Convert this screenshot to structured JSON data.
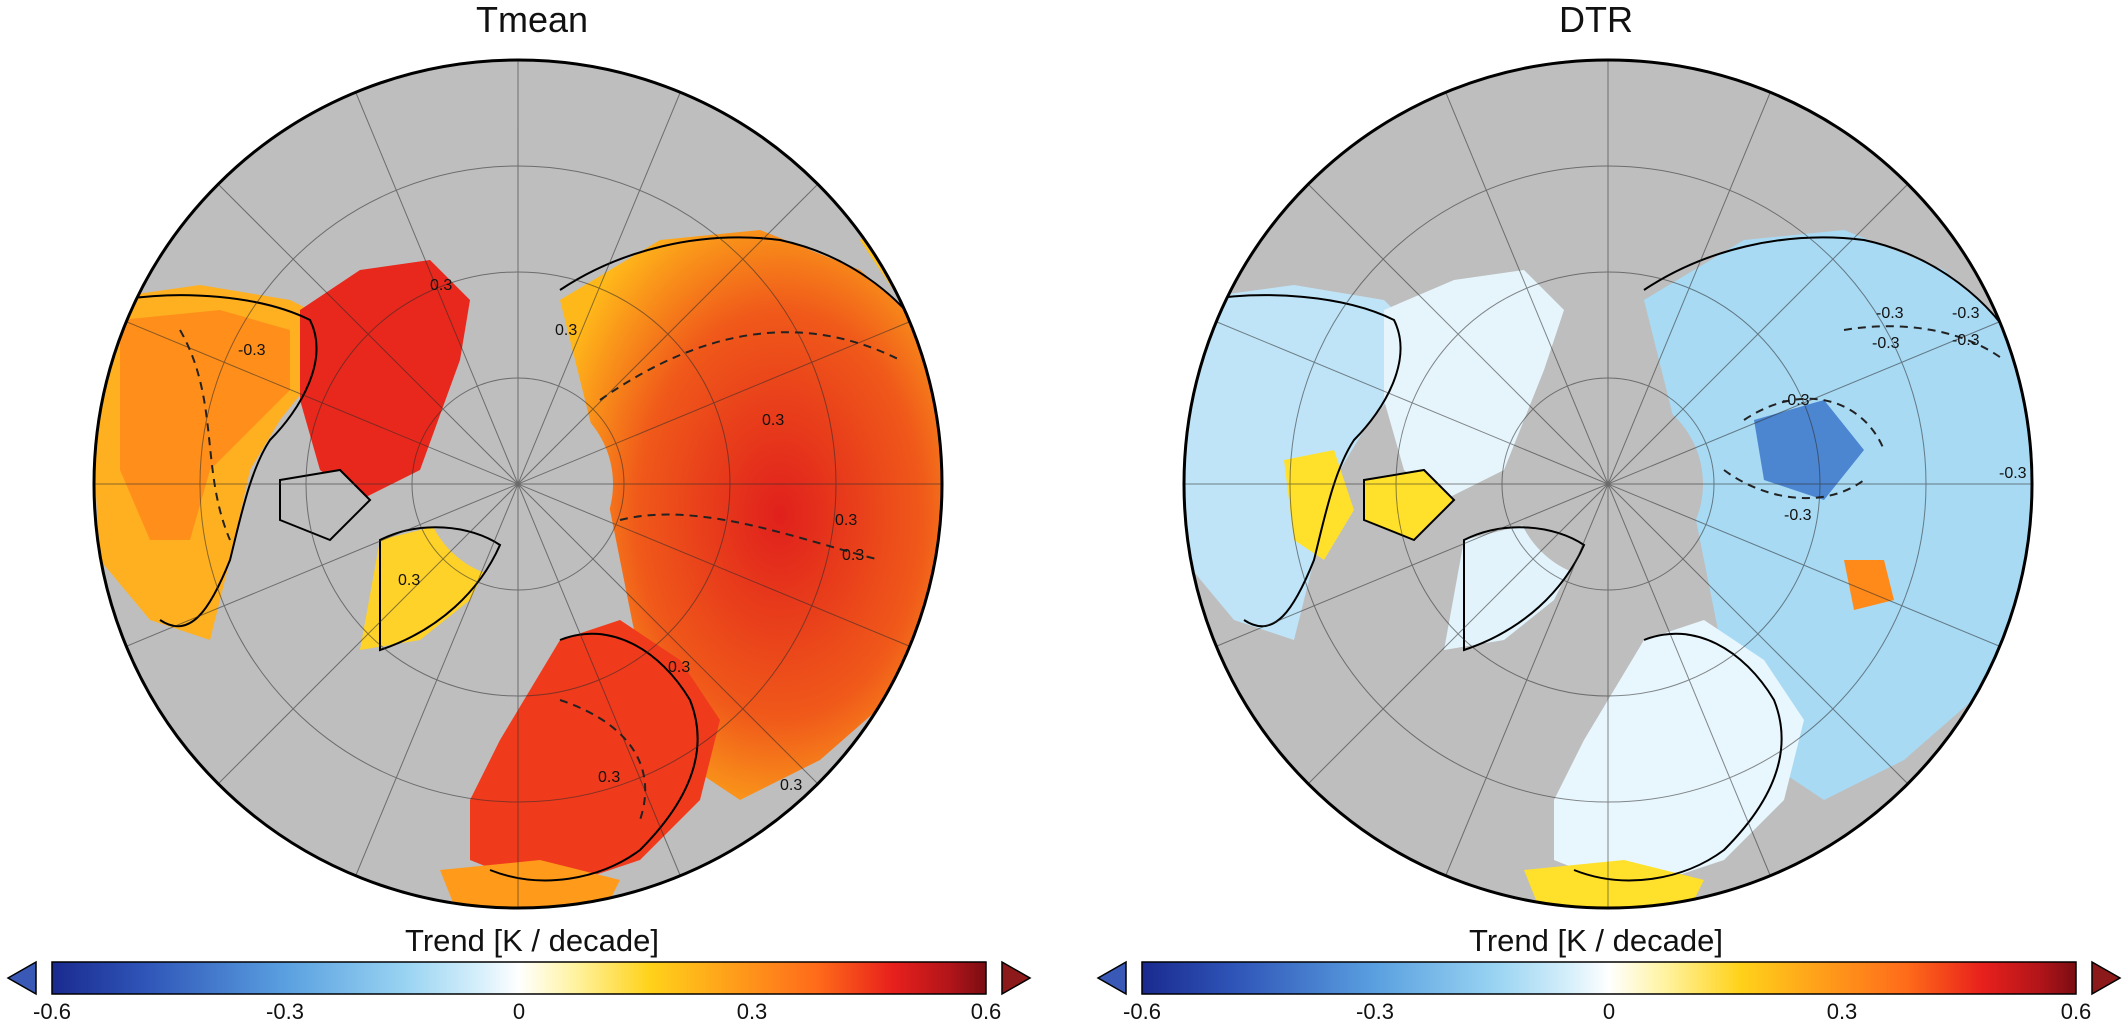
{
  "panels": [
    {
      "title": "Tmean",
      "contour_labels": [
        "-0.3",
        "0.3",
        "0.3",
        "0.3",
        "0.3",
        "0.3",
        "0.3",
        "0.3",
        "0.3",
        "0.3"
      ],
      "colorbar": {
        "label": "Trend [K / decade]",
        "ticks": [
          "-0.6",
          "-0.3",
          "0",
          "0.3",
          "0.6"
        ]
      }
    },
    {
      "title": "DTR",
      "contour_labels": [
        "-0.3",
        "-0.3",
        "-0.3",
        "-0.3",
        "-0.3",
        "-0.3",
        "-0.3"
      ],
      "colorbar": {
        "label": "Trend [K / decade]",
        "ticks": [
          "-0.6",
          "-0.3",
          "0",
          "0.3",
          "0.6"
        ]
      }
    }
  ],
  "colormap": {
    "stops": [
      "#1a2a8f",
      "#2f55b8",
      "#5aa0e0",
      "#9ad4f2",
      "#d8f0fb",
      "#ffffff",
      "#fff3a0",
      "#ffd21a",
      "#ffa31a",
      "#ff6a1a",
      "#e8201c",
      "#b3151a",
      "#7a0d12"
    ],
    "under_color": "#3a58b5",
    "over_color": "#8c1a1a",
    "land_color_missing": "#bebebe"
  }
}
